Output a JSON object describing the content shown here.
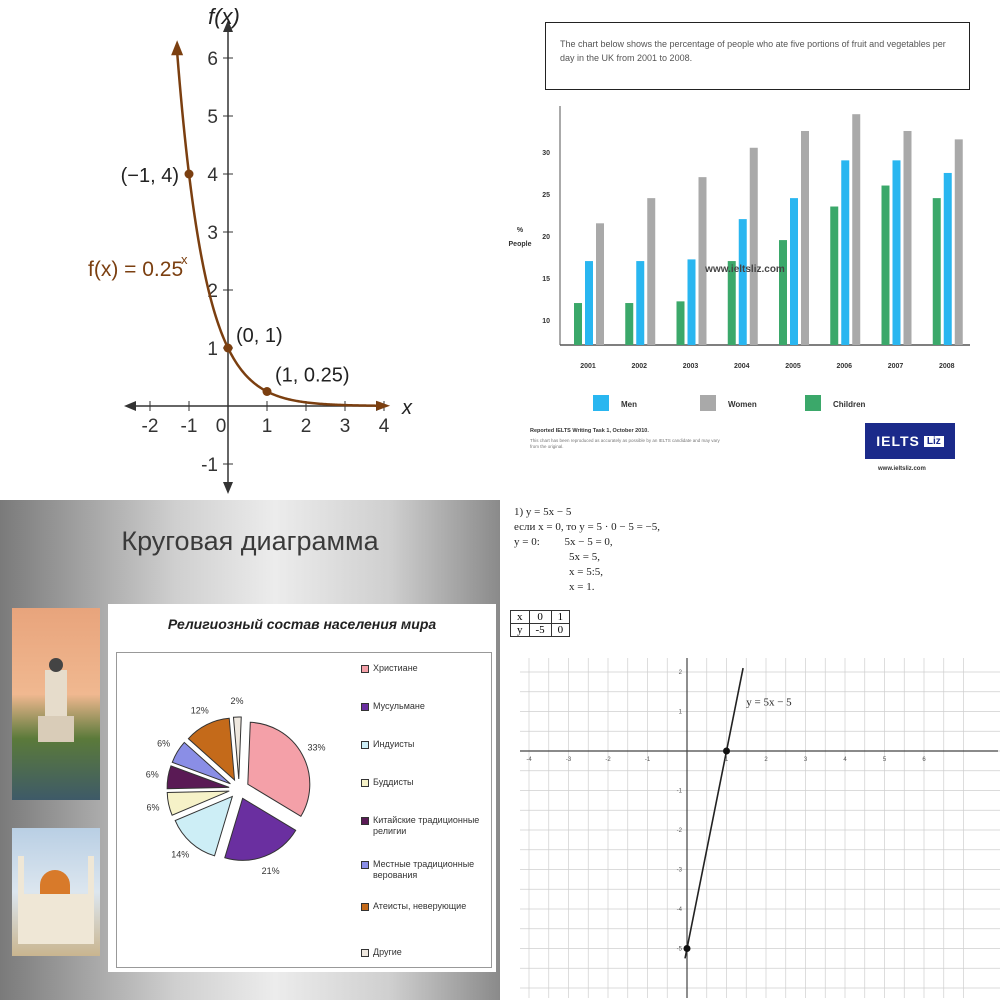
{
  "q1": {
    "chart_data": {
      "type": "line",
      "function_label": "f(x) = 0.25",
      "function_exponent": "x",
      "ylabel": "f(x)",
      "xlabel": "x",
      "xlim": [
        -2,
        4
      ],
      "ylim": [
        -1,
        6
      ],
      "x_ticks": [
        "-2",
        "-1",
        "0",
        "1",
        "2",
        "3",
        "4"
      ],
      "y_ticks": [
        "-1",
        "1",
        "2",
        "3",
        "4",
        "5",
        "6"
      ],
      "points": [
        {
          "x": -1,
          "y": 4,
          "label": "(−1, 4)"
        },
        {
          "x": 0,
          "y": 1,
          "label": "(0, 1)"
        },
        {
          "x": 1,
          "y": 0.25,
          "label": "(1, 0.25)"
        }
      ],
      "curve_color": "#7b3f10"
    }
  },
  "q2": {
    "title_box": "The chart below shows the percentage of people who ate five portions of fruit and vegetables per day in the UK from 2001 to 2008.",
    "watermark": "www.ieltsliz.com",
    "chart_data": {
      "type": "bar",
      "categories": [
        "2001",
        "2002",
        "2003",
        "2004",
        "2005",
        "2006",
        "2007",
        "2008"
      ],
      "ylabel": "% People",
      "y_ticks": [
        "10",
        "15",
        "20",
        "25",
        "30"
      ],
      "ylim": [
        7,
        35
      ],
      "series": [
        {
          "name": "Men",
          "color": "#29b6f0",
          "values": [
            17,
            17,
            17.2,
            22,
            24.5,
            29,
            29,
            27.5
          ]
        },
        {
          "name": "Women",
          "color": "#a9a9a9",
          "values": [
            21.5,
            24.5,
            27,
            30.5,
            32.5,
            34.5,
            32.5,
            31.5
          ]
        },
        {
          "name": "Children",
          "color": "#3ba86a",
          "values": [
            12,
            12,
            12.2,
            17,
            19.5,
            23.5,
            26,
            24.5
          ]
        }
      ]
    },
    "footer_source": "Reported IELTS Writing Task 1, October 2010.",
    "footer_note": "This chart has been reproduced as accurately as possible by an IELTS candidate and may vary from the original.",
    "logo_text": "IELTS",
    "logo_badge": "Liz",
    "logo_url": "www.ieltsliz.com"
  },
  "q3": {
    "slide_title": "Круговая диаграмма",
    "chart_data": {
      "type": "pie",
      "title": "Религиозный состав населения мира",
      "slices": [
        {
          "name": "Христиане",
          "value": 33,
          "label": "33%",
          "color": "#f4a0a8"
        },
        {
          "name": "Мусульмане",
          "value": 21,
          "label": "21%",
          "color": "#6a2fa0"
        },
        {
          "name": "Индуисты",
          "value": 14,
          "label": "14%",
          "color": "#cdeef6"
        },
        {
          "name": "Буддисты",
          "value": 6,
          "label": "6%",
          "color": "#f6f2c8"
        },
        {
          "name": "Китайские традиционные религии",
          "value": 6,
          "label": "6%",
          "color": "#5a1a55"
        },
        {
          "name": "Местные традиционные верования",
          "value": 6,
          "label": "6%",
          "color": "#8a8ee6"
        },
        {
          "name": "Атеисты, неверующие",
          "value": 12,
          "label": "12%",
          "color": "#c46a1a"
        },
        {
          "name": "Другие",
          "value": 2,
          "label": "2%",
          "color": "#efe8df"
        }
      ]
    },
    "legend": [
      "Христиане",
      "Мусульмане",
      "Индуисты",
      "Буддисты",
      "Китайские традиционные религии",
      "Местные традиционные верования",
      "Атеисты, неверующие",
      "Другие"
    ]
  },
  "q4": {
    "solution_lines": [
      "1) y = 5x − 5",
      "если x = 0, то y = 5 · 0 − 5 = −5,",
      "y = 0:         5x − 5 = 0,",
      "                    5x = 5,",
      "                    x = 5:5,",
      "                    x = 1."
    ],
    "table": {
      "rows": [
        [
          "x",
          "0",
          "1"
        ],
        [
          "y",
          "-5",
          "0"
        ]
      ]
    },
    "chart_data": {
      "type": "line",
      "function_label": "y = 5x − 5",
      "xlim": [
        -4,
        7
      ],
      "ylim": [
        -6,
        3
      ],
      "x_ticks": [
        "-4",
        "-3",
        "-2",
        "-1",
        "1",
        "2",
        "3",
        "4",
        "5",
        "6"
      ],
      "y_ticks": [
        "2",
        "1",
        "-1",
        "-2",
        "-3",
        "-4",
        "-5"
      ],
      "points": [
        {
          "x": 0,
          "y": -5
        },
        {
          "x": 1,
          "y": 0
        }
      ]
    }
  }
}
